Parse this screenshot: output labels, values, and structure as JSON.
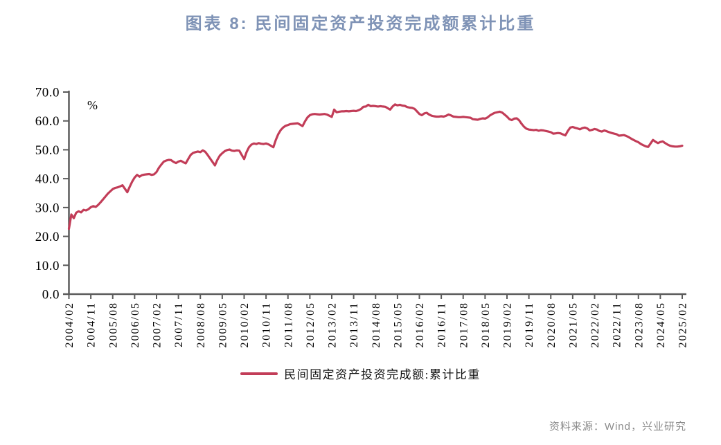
{
  "title": "图表 8: 民间固定资产投资完成额累计比重",
  "legend": {
    "label": "民间固定资产投资完成额:累计比重"
  },
  "source": "资料来源：Wind，兴业研究",
  "colors": {
    "line": "#C23D58",
    "title": "#7F93B6",
    "axis": "#5A5A5A",
    "tick_text": "#000000",
    "source_text": "#8C8C8C"
  },
  "chart_data": {
    "type": "line",
    "title": "图表 8: 民间固定资产投资完成额累计比重",
    "series_name": "民间固定资产投资完成额:累计比重",
    "y_axis_unit": "%",
    "ylim": [
      0,
      70
    ],
    "y_tick_labels": [
      "0.0",
      "10.0",
      "20.0",
      "30.0",
      "40.0",
      "50.0",
      "60.0",
      "70.0"
    ],
    "x_start": "2004/02",
    "frequency": "monthly",
    "x_tick_every_months": 9,
    "x_tick_labels": [
      "2004/02",
      "2004/11",
      "2005/08",
      "2006/05",
      "2007/02",
      "2007/11",
      "2008/08",
      "2009/05",
      "2010/02",
      "2010/11",
      "2011/08",
      "2012/05",
      "2013/02",
      "2013/11",
      "2014/08",
      "2015/05",
      "2016/02",
      "2016/11",
      "2017/08",
      "2018/05",
      "2019/02",
      "2019/11",
      "2020/08",
      "2021/05",
      "2022/02",
      "2022/11",
      "2023/08",
      "2024/05",
      "2025/02"
    ],
    "grid": false,
    "legend_position": "bottom-center",
    "values": [
      22.6,
      27.6,
      26.3,
      28.2,
      28.7,
      28.3,
      29.2,
      29.0,
      29.4,
      30.1,
      30.5,
      30.2,
      30.9,
      31.8,
      32.8,
      33.8,
      34.8,
      35.6,
      36.4,
      36.8,
      37.0,
      37.3,
      37.7,
      36.5,
      35.3,
      37.2,
      39.0,
      40.4,
      41.3,
      40.7,
      41.2,
      41.4,
      41.5,
      41.6,
      41.3,
      41.5,
      42.3,
      43.8,
      44.9,
      45.9,
      46.3,
      46.5,
      46.4,
      45.8,
      45.4,
      45.9,
      46.2,
      45.7,
      45.3,
      46.8,
      48.2,
      48.9,
      49.2,
      49.4,
      49.2,
      49.8,
      49.3,
      48.2,
      47.0,
      45.8,
      44.6,
      46.5,
      48.0,
      48.8,
      49.5,
      49.9,
      50.1,
      49.7,
      49.6,
      49.8,
      49.7,
      48.2,
      46.8,
      49.2,
      50.9,
      51.8,
      52.2,
      52.0,
      52.3,
      52.1,
      52.0,
      52.2,
      51.9,
      51.4,
      50.9,
      53.4,
      55.4,
      56.8,
      57.7,
      58.3,
      58.6,
      58.9,
      59.0,
      59.1,
      59.2,
      58.7,
      58.2,
      59.8,
      61.2,
      62.0,
      62.3,
      62.4,
      62.3,
      62.2,
      62.3,
      62.4,
      62.2,
      61.8,
      61.4,
      63.9,
      63.0,
      63.2,
      63.3,
      63.3,
      63.4,
      63.3,
      63.4,
      63.5,
      63.4,
      63.7,
      64.1,
      64.9,
      65.0,
      65.6,
      65.1,
      65.2,
      65.1,
      65.0,
      65.1,
      65.0,
      64.9,
      64.4,
      63.9,
      65.0,
      65.7,
      65.4,
      65.6,
      65.3,
      65.2,
      64.8,
      64.6,
      64.5,
      64.2,
      63.3,
      62.4,
      62.0,
      62.6,
      62.8,
      62.2,
      61.8,
      61.6,
      61.5,
      61.5,
      61.6,
      61.5,
      61.8,
      62.2,
      61.9,
      61.5,
      61.4,
      61.3,
      61.3,
      61.4,
      61.3,
      61.2,
      61.1,
      60.6,
      60.5,
      60.4,
      60.7,
      60.9,
      60.8,
      61.2,
      61.9,
      62.4,
      62.8,
      63.0,
      63.2,
      62.9,
      62.2,
      61.5,
      60.6,
      60.3,
      60.8,
      60.9,
      60.2,
      59.0,
      58.0,
      57.3,
      57.0,
      56.9,
      56.8,
      56.9,
      56.6,
      56.8,
      56.7,
      56.5,
      56.3,
      56.1,
      55.6,
      55.7,
      55.8,
      55.7,
      55.3,
      55.0,
      56.5,
      57.7,
      57.9,
      57.6,
      57.4,
      57.1,
      57.5,
      57.7,
      57.4,
      56.7,
      56.9,
      57.2,
      57.0,
      56.5,
      56.3,
      56.7,
      56.4,
      56.1,
      55.8,
      55.6,
      55.4,
      54.9,
      55.0,
      55.1,
      54.8,
      54.4,
      53.9,
      53.4,
      53.0,
      52.6,
      52.0,
      51.6,
      51.2,
      51.0,
      52.2,
      53.4,
      52.8,
      52.3,
      52.7,
      52.9,
      52.3,
      51.8,
      51.4,
      51.2,
      51.1,
      51.1,
      51.2,
      51.4
    ]
  }
}
